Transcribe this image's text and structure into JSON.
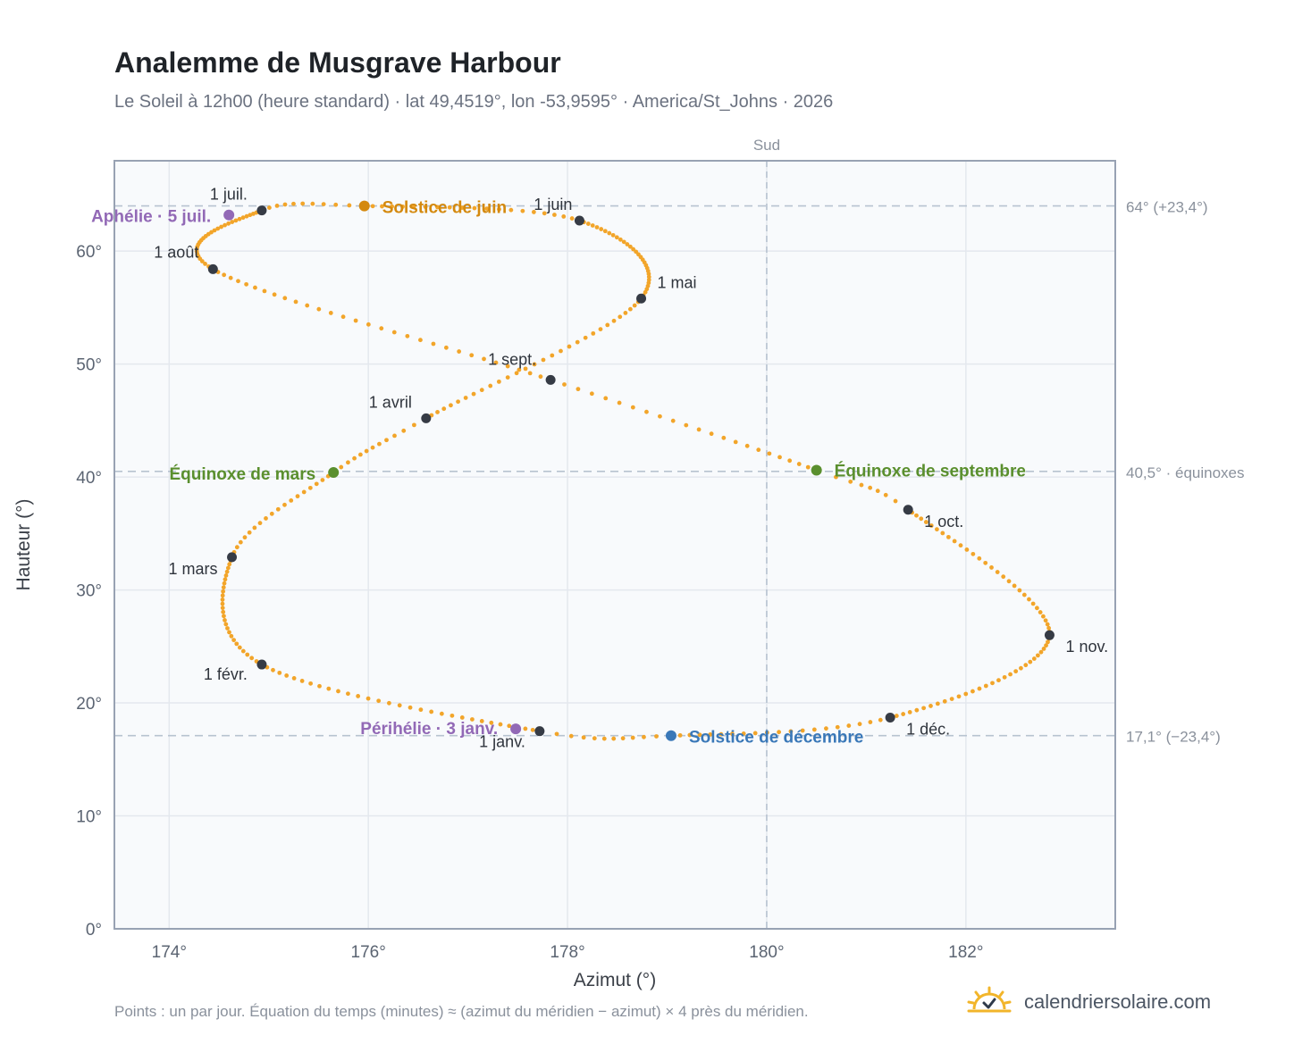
{
  "header": {
    "title": "Analemme de Musgrave Harbour",
    "subtitle": "Le Soleil à 12h00 (heure standard) · lat 49,4519°, lon -53,9595° · America/St_Johns · 2026"
  },
  "footer": {
    "note": "Points : un par jour. Équation du temps (minutes) ≈ (azimut du méridien − azimut) × 4 près du méridien.",
    "brand": "calendriersolaire.com",
    "brand_icon": "sun-check-icon"
  },
  "colors": {
    "analemma": "#f2a52a",
    "month_marker": "#363b45",
    "june_solstice": "#d4890e",
    "december_solstice": "#3a78b8",
    "equinox": "#5a8f2e",
    "apsis": "#9269b6",
    "reference_line": "#b7c3d0",
    "plot_bg": "#f8fafc",
    "frame": "#98a2b3"
  },
  "chart_data": {
    "type": "scatter",
    "title": "Analemme de Musgrave Harbour",
    "xlabel": "Azimut (°)",
    "ylabel": "Hauteur (°)",
    "xlim": [
      173.45,
      183.5
    ],
    "ylim": [
      0,
      68
    ],
    "x_ticks": [
      {
        "value": 174,
        "label": "174°"
      },
      {
        "value": 176,
        "label": "176°"
      },
      {
        "value": 178,
        "label": "178°"
      },
      {
        "value": 180,
        "label": "180°"
      },
      {
        "value": 182,
        "label": "182°"
      }
    ],
    "y_ticks": [
      {
        "value": 0,
        "label": "0°"
      },
      {
        "value": 10,
        "label": "10°"
      },
      {
        "value": 20,
        "label": "20°"
      },
      {
        "value": 30,
        "label": "30°"
      },
      {
        "value": 40,
        "label": "40°"
      },
      {
        "value": 50,
        "label": "50°"
      },
      {
        "value": 60,
        "label": "60°"
      }
    ],
    "grid": true,
    "meridian": {
      "x": 180,
      "label": "Sud"
    },
    "reference_lines": [
      {
        "y": 64.0,
        "label": "64° (+23,4°)"
      },
      {
        "y": 40.5,
        "label": "40,5° · équinoxes"
      },
      {
        "y": 17.1,
        "label": "17,1° (−23,4°)"
      }
    ],
    "series": [
      {
        "type": "daily-points",
        "points_per_year": 365,
        "control_points": [
          {
            "day": 0,
            "x": 177.72,
            "y": 17.5
          },
          {
            "day": 31,
            "x": 174.93,
            "y": 23.4
          },
          {
            "day": 59,
            "x": 174.63,
            "y": 32.9
          },
          {
            "day": 78,
            "x": 175.65,
            "y": 40.4
          },
          {
            "day": 90,
            "x": 176.58,
            "y": 45.2
          },
          {
            "day": 120,
            "x": 178.74,
            "y": 55.8
          },
          {
            "day": 151,
            "x": 178.12,
            "y": 62.7
          },
          {
            "day": 171,
            "x": 175.96,
            "y": 64.0
          },
          {
            "day": 181,
            "x": 174.93,
            "y": 63.6
          },
          {
            "day": 212,
            "x": 174.44,
            "y": 58.4
          },
          {
            "day": 243,
            "x": 177.83,
            "y": 48.6
          },
          {
            "day": 265,
            "x": 180.5,
            "y": 40.6
          },
          {
            "day": 273,
            "x": 181.42,
            "y": 37.1
          },
          {
            "day": 304,
            "x": 182.84,
            "y": 26.0
          },
          {
            "day": 334,
            "x": 181.24,
            "y": 18.7
          },
          {
            "day": 354,
            "x": 179.04,
            "y": 17.1
          },
          {
            "day": 365,
            "x": 177.72,
            "y": 17.5
          }
        ]
      }
    ],
    "month_markers": [
      {
        "label": "1 janv.",
        "x": 177.72,
        "y": 17.5
      },
      {
        "label": "1 févr.",
        "x": 174.93,
        "y": 23.4
      },
      {
        "label": "1 mars",
        "x": 174.63,
        "y": 32.9
      },
      {
        "label": "1 avril",
        "x": 176.58,
        "y": 45.2
      },
      {
        "label": "1 mai",
        "x": 178.74,
        "y": 55.8
      },
      {
        "label": "1 juin",
        "x": 178.12,
        "y": 62.7
      },
      {
        "label": "1 juil.",
        "x": 174.93,
        "y": 63.6
      },
      {
        "label": "1 août",
        "x": 174.44,
        "y": 58.4
      },
      {
        "label": "1 sept.",
        "x": 177.83,
        "y": 48.6
      },
      {
        "label": "1 oct.",
        "x": 181.42,
        "y": 37.1
      },
      {
        "label": "1 nov.",
        "x": 182.84,
        "y": 26.0
      },
      {
        "label": "1 déc.",
        "x": 181.24,
        "y": 18.7
      }
    ],
    "events": [
      {
        "label": "Solstice de juin",
        "x": 175.96,
        "y": 64.0,
        "kind": "june_solstice"
      },
      {
        "label": "Solstice de décembre",
        "x": 179.04,
        "y": 17.1,
        "kind": "december_solstice"
      },
      {
        "label": "Équinoxe de mars",
        "x": 175.65,
        "y": 40.4,
        "kind": "equinox"
      },
      {
        "label": "Équinoxe de septembre",
        "x": 180.5,
        "y": 40.6,
        "kind": "equinox"
      },
      {
        "label": "Aphélie · 5 juil.",
        "x": 174.6,
        "y": 63.2,
        "kind": "apsis"
      },
      {
        "label": "Périhélie · 3 janv.",
        "x": 177.48,
        "y": 17.7,
        "kind": "apsis"
      }
    ]
  }
}
